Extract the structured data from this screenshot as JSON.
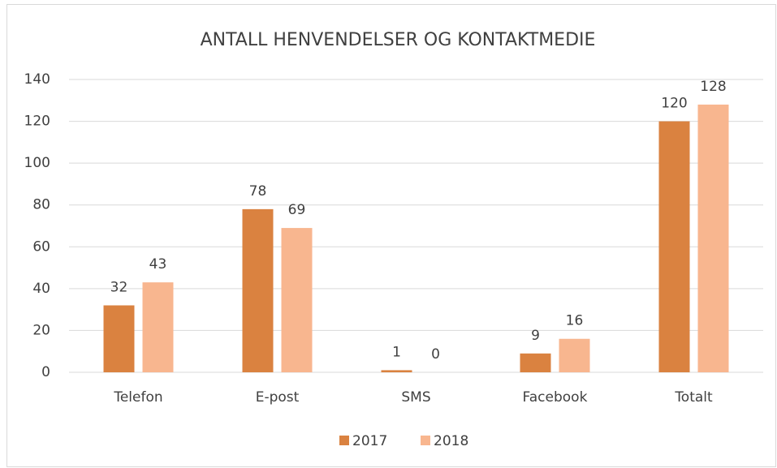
{
  "chart_data": {
    "type": "bar",
    "title": "ANTALL HENVENDELSER OG KONTAKTMEDIE",
    "categories": [
      "Telefon",
      "E-post",
      "SMS",
      "Facebook",
      "Totalt"
    ],
    "series": [
      {
        "name": "2017",
        "color": "#da8240",
        "values": [
          32,
          78,
          1,
          9,
          120
        ]
      },
      {
        "name": "2018",
        "color": "#f8b68f",
        "values": [
          43,
          69,
          0,
          16,
          128
        ]
      }
    ],
    "ylim": [
      0,
      140
    ],
    "yticks": [
      0,
      20,
      40,
      60,
      80,
      100,
      120,
      140
    ],
    "grid": true,
    "legend": "bottom"
  }
}
